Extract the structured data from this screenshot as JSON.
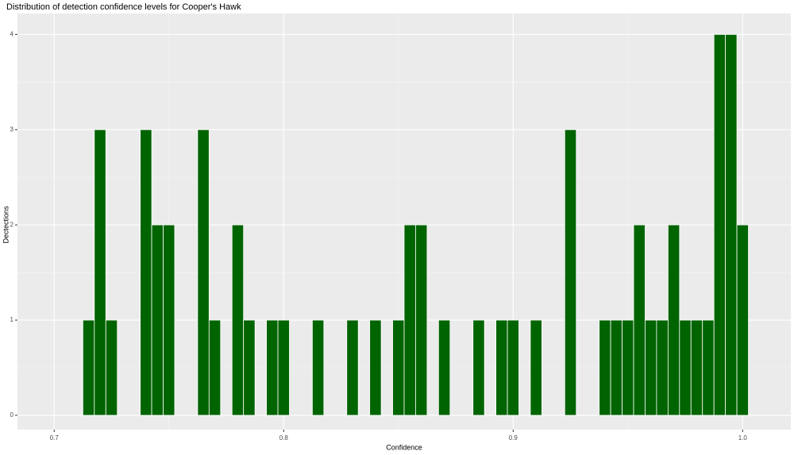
{
  "chart_data": {
    "type": "histogram",
    "title": "Distribution of detection confidence levels for Cooper's Hawk",
    "x_label": "Confidence",
    "y_label": "Dectections",
    "bins": [
      0.7125,
      0.7175,
      0.7225,
      0.7275,
      0.7325,
      0.7375,
      0.7425,
      0.7475,
      0.7525,
      0.7575,
      0.7625,
      0.7675,
      0.7725,
      0.7775,
      0.7825,
      0.7875,
      0.7925,
      0.7975,
      0.8025,
      0.8075,
      0.8125,
      0.8175,
      0.8225,
      0.8275,
      0.8325,
      0.8375,
      0.8425,
      0.8475,
      0.8525,
      0.8575,
      0.8625,
      0.8675,
      0.8725,
      0.8775,
      0.8825,
      0.8875,
      0.8925,
      0.8975,
      0.9025,
      0.9075,
      0.9125,
      0.9175,
      0.9225,
      0.9275,
      0.9325,
      0.9375,
      0.9425,
      0.9475,
      0.9525,
      0.9575,
      0.9625,
      0.9675,
      0.9725,
      0.9775,
      0.9825,
      0.9875,
      0.9925,
      0.9975,
      1.0025
    ],
    "values": [
      1,
      3,
      1,
      0,
      0,
      3,
      2,
      2,
      0,
      0,
      3,
      1,
      0,
      2,
      1,
      0,
      1,
      1,
      0,
      0,
      1,
      0,
      0,
      1,
      0,
      1,
      0,
      1,
      2,
      2,
      0,
      1,
      0,
      0,
      1,
      0,
      1,
      1,
      0,
      1,
      0,
      0,
      3,
      0,
      0,
      1,
      1,
      1,
      2,
      1,
      1,
      2,
      1,
      1,
      1,
      4,
      4,
      2
    ],
    "color": "#006400",
    "xlim": [
      0.684,
      1.021
    ],
    "xticks": [
      0.7,
      0.8,
      0.9,
      {
        "value": 1,
        "label": "1.0"
      }
    ],
    "ylim": [
      -0.15,
      4.22
    ],
    "yticks": [
      0,
      1,
      2,
      3,
      4
    ],
    "grid": true
  }
}
